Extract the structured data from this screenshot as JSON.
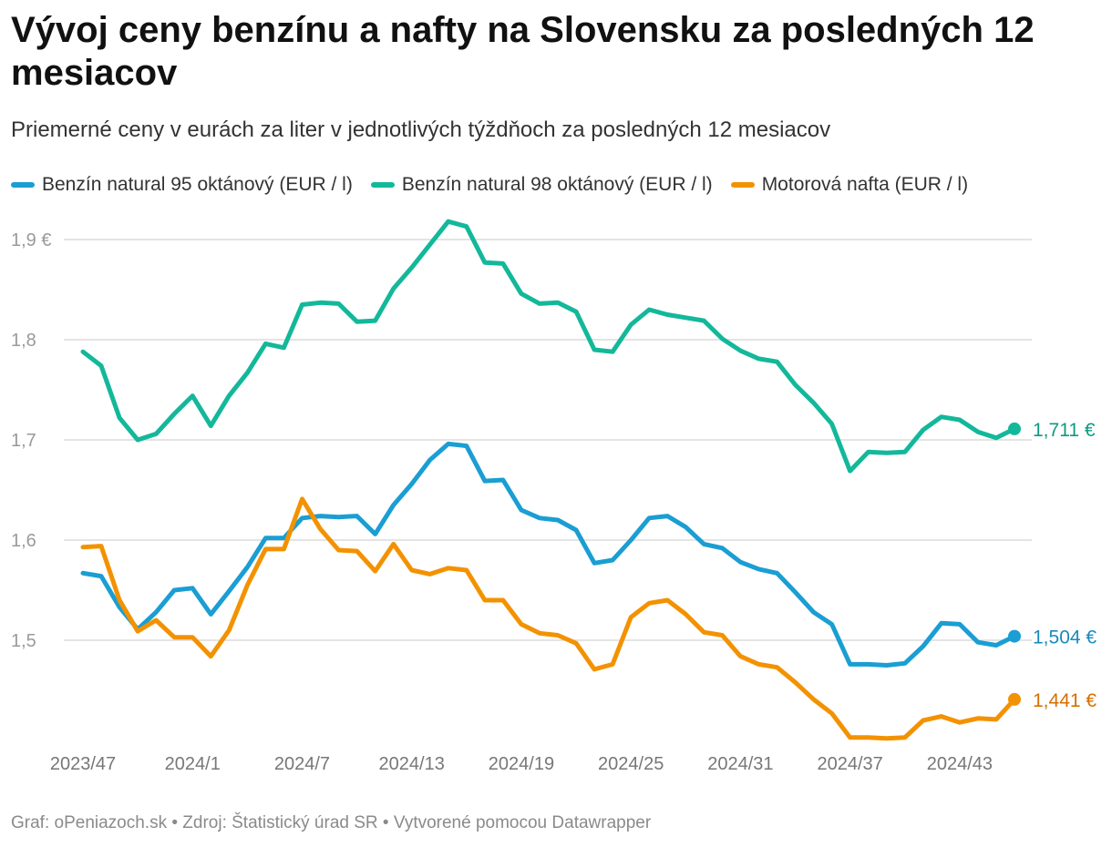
{
  "header": {
    "title": "Vývoj ceny benzínu a nafty na Slovensku za posledných 12 mesiacov",
    "subtitle": "Priemerné ceny v eurách za liter v jednotlivých týždňoch za posledných 12 mesiacov"
  },
  "footer": {
    "text": "Graf: oPeniazoch.sk • Zdroj: Štatistický úrad SR • Vytvorené pomocou Datawrapper"
  },
  "chart_data": {
    "type": "line",
    "title": "Vývoj ceny benzínu a nafty na Slovensku za posledných 12 mesiacov",
    "xlabel": "",
    "ylabel": "",
    "ylim": [
      1.4,
      1.92
    ],
    "grid": true,
    "legend_position": "top",
    "y_ticks": [
      1.5,
      1.6,
      1.7,
      1.8,
      1.9
    ],
    "y_tick_labels": [
      "1,5",
      "1,6",
      "1,7",
      "1,8",
      "1,9 €"
    ],
    "x_ticks": [
      {
        "index": 0,
        "label": "2023/47"
      },
      {
        "index": 6,
        "label": "2024/1"
      },
      {
        "index": 12,
        "label": "2024/7"
      },
      {
        "index": 18,
        "label": "2024/13"
      },
      {
        "index": 24,
        "label": "2024/19"
      },
      {
        "index": 30,
        "label": "2024/25"
      },
      {
        "index": 36,
        "label": "2024/31"
      },
      {
        "index": 42,
        "label": "2024/37"
      },
      {
        "index": 48,
        "label": "2024/43"
      }
    ],
    "series": [
      {
        "name": "Benzín natural 95 oktánový (EUR / l)",
        "color": "#1a9ed3",
        "label_color": "#1a8abf",
        "end_label": "1,504 €",
        "values": [
          1.567,
          1.564,
          1.533,
          1.511,
          1.528,
          1.55,
          1.552,
          1.526,
          1.549,
          1.573,
          1.602,
          1.602,
          1.622,
          1.624,
          1.623,
          1.624,
          1.606,
          1.635,
          1.656,
          1.68,
          1.696,
          1.694,
          1.659,
          1.66,
          1.63,
          1.622,
          1.62,
          1.61,
          1.577,
          1.58,
          1.6,
          1.622,
          1.624,
          1.613,
          1.596,
          1.592,
          1.578,
          1.571,
          1.567,
          1.548,
          1.528,
          1.516,
          1.476,
          1.476,
          1.475,
          1.477,
          1.494,
          1.517,
          1.516,
          1.498,
          1.495,
          1.504
        ]
      },
      {
        "name": "Benzín natural 98 oktánový (EUR / l)",
        "color": "#13b89a",
        "label_color": "#0f9a80",
        "end_label": "1,711 €",
        "values": [
          1.788,
          1.774,
          1.722,
          1.7,
          1.706,
          1.726,
          1.744,
          1.714,
          1.744,
          1.767,
          1.796,
          1.792,
          1.835,
          1.837,
          1.836,
          1.818,
          1.819,
          1.851,
          1.872,
          1.895,
          1.918,
          1.913,
          1.877,
          1.876,
          1.846,
          1.836,
          1.837,
          1.828,
          1.79,
          1.788,
          1.815,
          1.83,
          1.825,
          1.822,
          1.819,
          1.801,
          1.789,
          1.781,
          1.778,
          1.755,
          1.737,
          1.716,
          1.669,
          1.688,
          1.687,
          1.688,
          1.71,
          1.723,
          1.72,
          1.708,
          1.702,
          1.711
        ]
      },
      {
        "name": "Motorová nafta (EUR / l)",
        "color": "#f39200",
        "label_color": "#d66f00",
        "end_label": "1,441 €",
        "values": [
          1.593,
          1.594,
          1.54,
          1.509,
          1.52,
          1.503,
          1.503,
          1.484,
          1.51,
          1.555,
          1.591,
          1.591,
          1.641,
          1.611,
          1.59,
          1.589,
          1.569,
          1.596,
          1.57,
          1.566,
          1.572,
          1.57,
          1.54,
          1.54,
          1.516,
          1.507,
          1.505,
          1.497,
          1.471,
          1.476,
          1.523,
          1.537,
          1.54,
          1.526,
          1.508,
          1.505,
          1.484,
          1.476,
          1.473,
          1.458,
          1.441,
          1.427,
          1.403,
          1.403,
          1.402,
          1.403,
          1.42,
          1.424,
          1.418,
          1.422,
          1.421,
          1.441
        ]
      }
    ]
  }
}
